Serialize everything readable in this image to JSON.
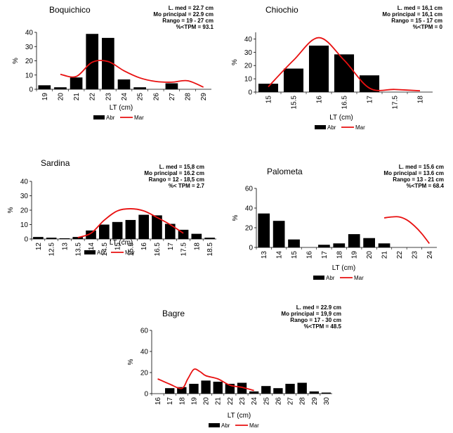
{
  "figure": {
    "series_colors": {
      "Abr": "#000000",
      "Mar": "#e81010"
    }
  },
  "chart_data": [
    {
      "type": "bar",
      "title": "Boquichico",
      "stats": [
        "L. med = 22.7 cm",
        "Mo principal = 22.9 cm",
        "Rango = 19 - 27 cm",
        "%<TPM = 93.1"
      ],
      "xlabel": "LT (cm)",
      "ylabel": "%",
      "categories": [
        "19",
        "20",
        "21",
        "22",
        "23",
        "24",
        "25",
        "26",
        "27",
        "28",
        "29"
      ],
      "ylim": [
        0,
        40
      ],
      "yticks": [
        0,
        10,
        20,
        30,
        40
      ],
      "grid": false,
      "legend_position": "bottom",
      "series": [
        {
          "name": "Abr",
          "kind": "bar",
          "values": [
            2.8,
            1.4,
            8.3,
            38.9,
            36.1,
            6.9,
            1.4,
            0,
            4.2,
            0,
            0
          ]
        },
        {
          "name": "Mar",
          "kind": "line",
          "x": [
            20,
            21,
            22,
            23,
            24,
            25,
            26,
            27,
            28,
            29
          ],
          "values": [
            10.5,
            9,
            19,
            19.5,
            13,
            8,
            5.5,
            5,
            6,
            1.5
          ]
        }
      ]
    },
    {
      "type": "bar",
      "title": "Chiochio",
      "stats": [
        "L. med = 16,1 cm",
        "Mo principal = 16,1 cm",
        "Rango = 15 - 17 cm",
        "%<TPM = 0"
      ],
      "xlabel": "LT (cm)",
      "ylabel": "%",
      "categories": [
        "15",
        "15.5",
        "16",
        "16.5",
        "17",
        "17.5",
        "18"
      ],
      "ylim": [
        0,
        45
      ],
      "yticks": [
        0,
        10,
        20,
        30,
        40
      ],
      "grid": false,
      "legend_position": "bottom",
      "series": [
        {
          "name": "Abr",
          "kind": "bar",
          "values": [
            6.3,
            17.7,
            35.0,
            28.4,
            12.6,
            0,
            0
          ]
        },
        {
          "name": "Mar",
          "kind": "line",
          "x": [
            15,
            15.5,
            16,
            16.5,
            17,
            17.5,
            18
          ],
          "values": [
            4,
            24,
            41,
            24,
            3,
            2,
            1
          ]
        }
      ]
    },
    {
      "type": "bar",
      "title": "Sardina",
      "stats": [
        "L. med = 15,8 cm",
        "Mo principal = 16.2 cm",
        "Rango = 12 - 18,5 cm",
        "%< TPM = 2.7"
      ],
      "xlabel": "LT (cm)",
      "ylabel": "%",
      "categories": [
        "12",
        "12.5",
        "13",
        "13.5",
        "14",
        "14.5",
        "15",
        "15.5",
        "16",
        "16.5",
        "17",
        "17.5",
        "18",
        "18.5"
      ],
      "ylim": [
        0,
        40
      ],
      "yticks": [
        0,
        10,
        20,
        30,
        40
      ],
      "grid": false,
      "legend_position": "bottom",
      "series": [
        {
          "name": "Abr",
          "kind": "bar",
          "values": [
            1.4,
            0.9,
            0.5,
            1.4,
            5.9,
            10.0,
            11.8,
            13.2,
            16.8,
            16.4,
            10.5,
            6.4,
            3.6,
            0.9
          ]
        },
        {
          "name": "Mar",
          "kind": "line",
          "x": [
            13.5,
            14,
            14.5,
            15,
            15.5,
            16,
            16.5,
            17,
            17.5
          ],
          "values": [
            1,
            4,
            13,
            19.5,
            21,
            19.5,
            15,
            10,
            4
          ]
        }
      ]
    },
    {
      "type": "bar",
      "title": "Palometa",
      "stats": [
        "L. med = 15.6 cm",
        "Mo principal = 13.6 cm",
        "Rango = 13 - 21 cm",
        "%<TPM = 68.4"
      ],
      "xlabel": "LT (cm)",
      "ylabel": "%",
      "categories": [
        "13",
        "14",
        "15",
        "16",
        "17",
        "18",
        "19",
        "20",
        "21",
        "22",
        "23",
        "24"
      ],
      "ylim": [
        0,
        60
      ],
      "yticks": [
        0,
        20,
        40,
        60
      ],
      "grid": false,
      "legend_position": "bottom",
      "series": [
        {
          "name": "Abr",
          "kind": "bar",
          "values": [
            34.5,
            27.0,
            8.1,
            0,
            2.7,
            4.1,
            13.5,
            9.5,
            4.1,
            0,
            0,
            0
          ]
        },
        {
          "name": "Mar",
          "kind": "line",
          "x": [
            21,
            21.5,
            22,
            22.5,
            23,
            23.5,
            24
          ],
          "values": [
            30,
            31,
            31,
            28,
            22,
            14,
            4
          ]
        }
      ]
    },
    {
      "type": "bar",
      "title": "Bagre",
      "stats": [
        "L. med = 22.9 cm",
        "Mo principal = 19,9 cm",
        "Rango = 17 - 30 cm",
        "%<TPM = 48.5"
      ],
      "xlabel": "LT (cm)",
      "ylabel": "%",
      "categories": [
        "16",
        "17",
        "18",
        "19",
        "20",
        "21",
        "22",
        "23",
        "24",
        "25",
        "26",
        "27",
        "28",
        "29",
        "30"
      ],
      "ylim": [
        0,
        60
      ],
      "yticks": [
        0,
        20,
        40,
        60
      ],
      "grid": false,
      "legend_position": "bottom",
      "series": [
        {
          "name": "Abr",
          "kind": "bar",
          "values": [
            0,
            5.2,
            6.2,
            9.3,
            12.4,
            11.3,
            9.3,
            10.3,
            2.1,
            7.2,
            5.2,
            9.3,
            10.3,
            2.1,
            1.0
          ]
        },
        {
          "name": "Mar",
          "kind": "line",
          "x": [
            16,
            17,
            18,
            18.5,
            19,
            19.5,
            20,
            21,
            22,
            23,
            24
          ],
          "values": [
            14,
            9,
            5,
            14,
            23,
            21,
            17,
            14,
            8,
            6,
            3
          ]
        }
      ]
    }
  ]
}
